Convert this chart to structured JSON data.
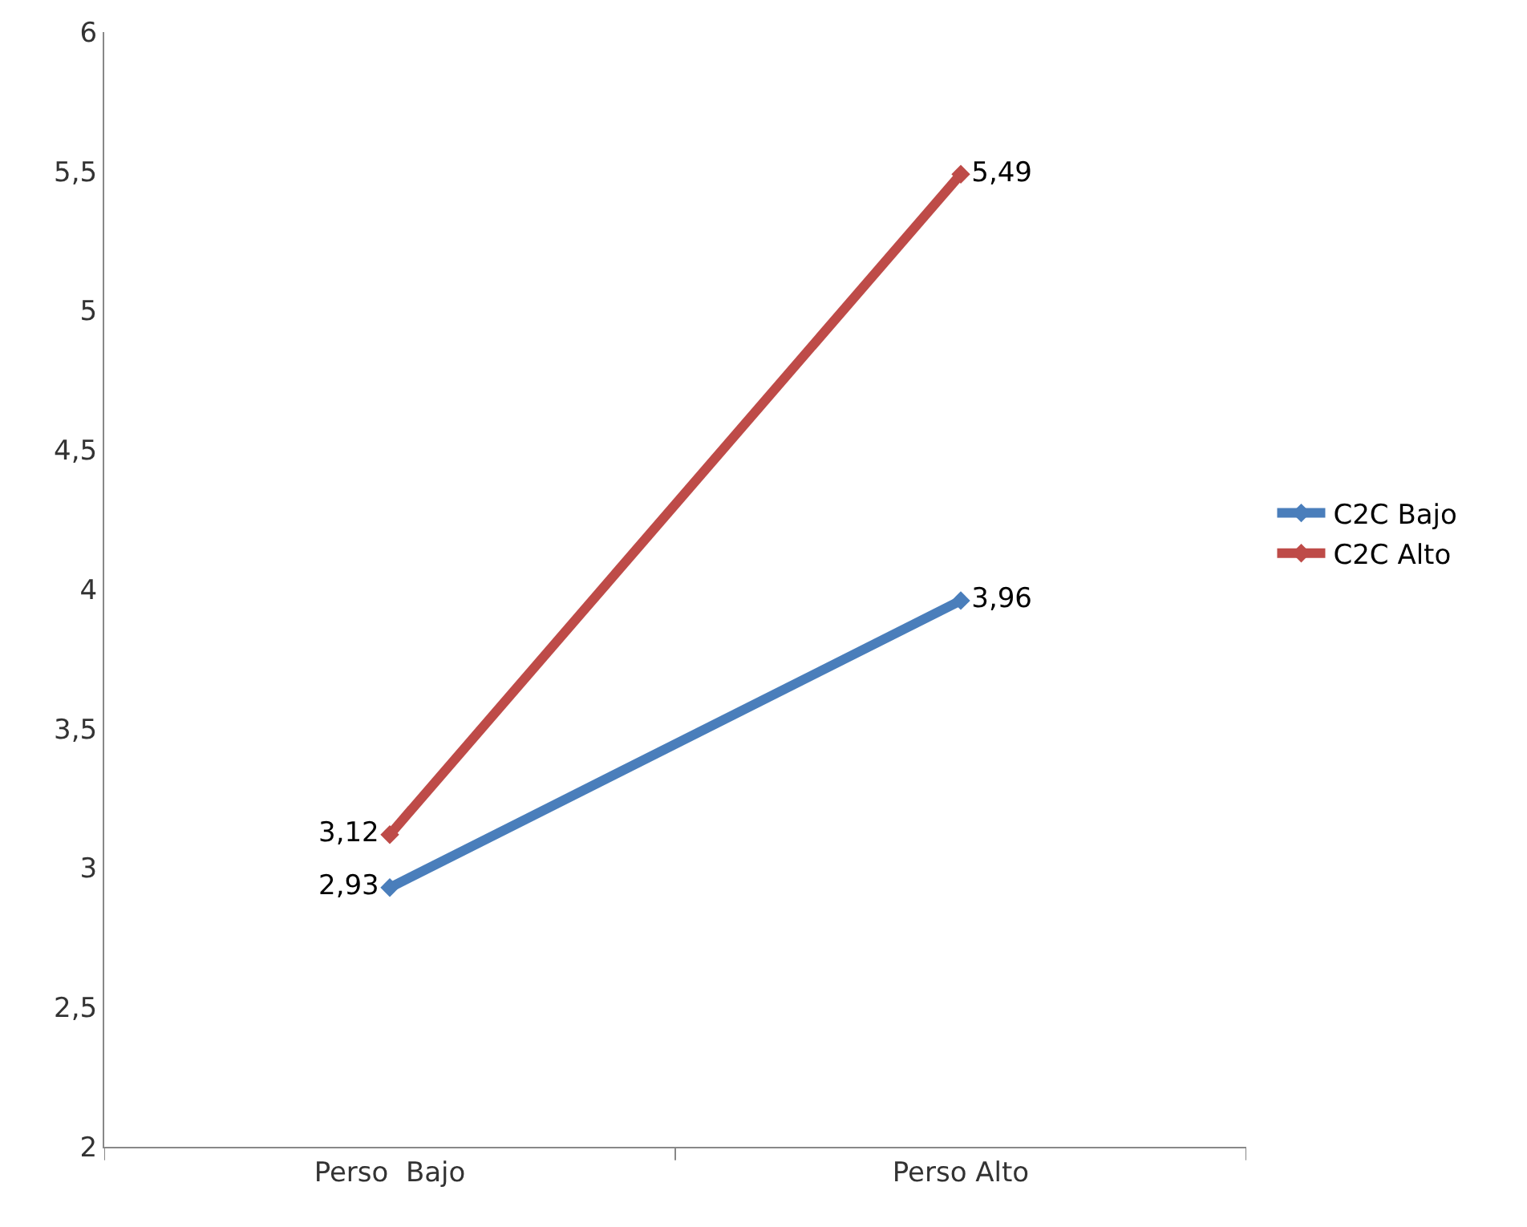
{
  "chart_data": {
    "type": "line",
    "categories": [
      "Perso  Bajo",
      "Perso Alto"
    ],
    "series": [
      {
        "name": "C2C Bajo",
        "color": "#4a7ebb",
        "values": [
          2.93,
          3.96
        ],
        "value_labels": [
          "2,93",
          "3,96"
        ]
      },
      {
        "name": "C2C Alto",
        "color": "#be4b48",
        "values": [
          3.12,
          5.49
        ],
        "value_labels": [
          "3,12",
          "5,49"
        ]
      }
    ],
    "ylim": [
      2,
      6
    ],
    "yticks": [
      2,
      {
        "value": 2.5,
        "label": "2,5"
      },
      3,
      {
        "value": 3.5,
        "label": "3,5"
      },
      4,
      {
        "value": 4.5,
        "label": "4,5"
      },
      5,
      {
        "value": 5.5,
        "label": "5,5"
      },
      6
    ],
    "legend": "right",
    "marker": "diamond",
    "line_style": "solid"
  }
}
